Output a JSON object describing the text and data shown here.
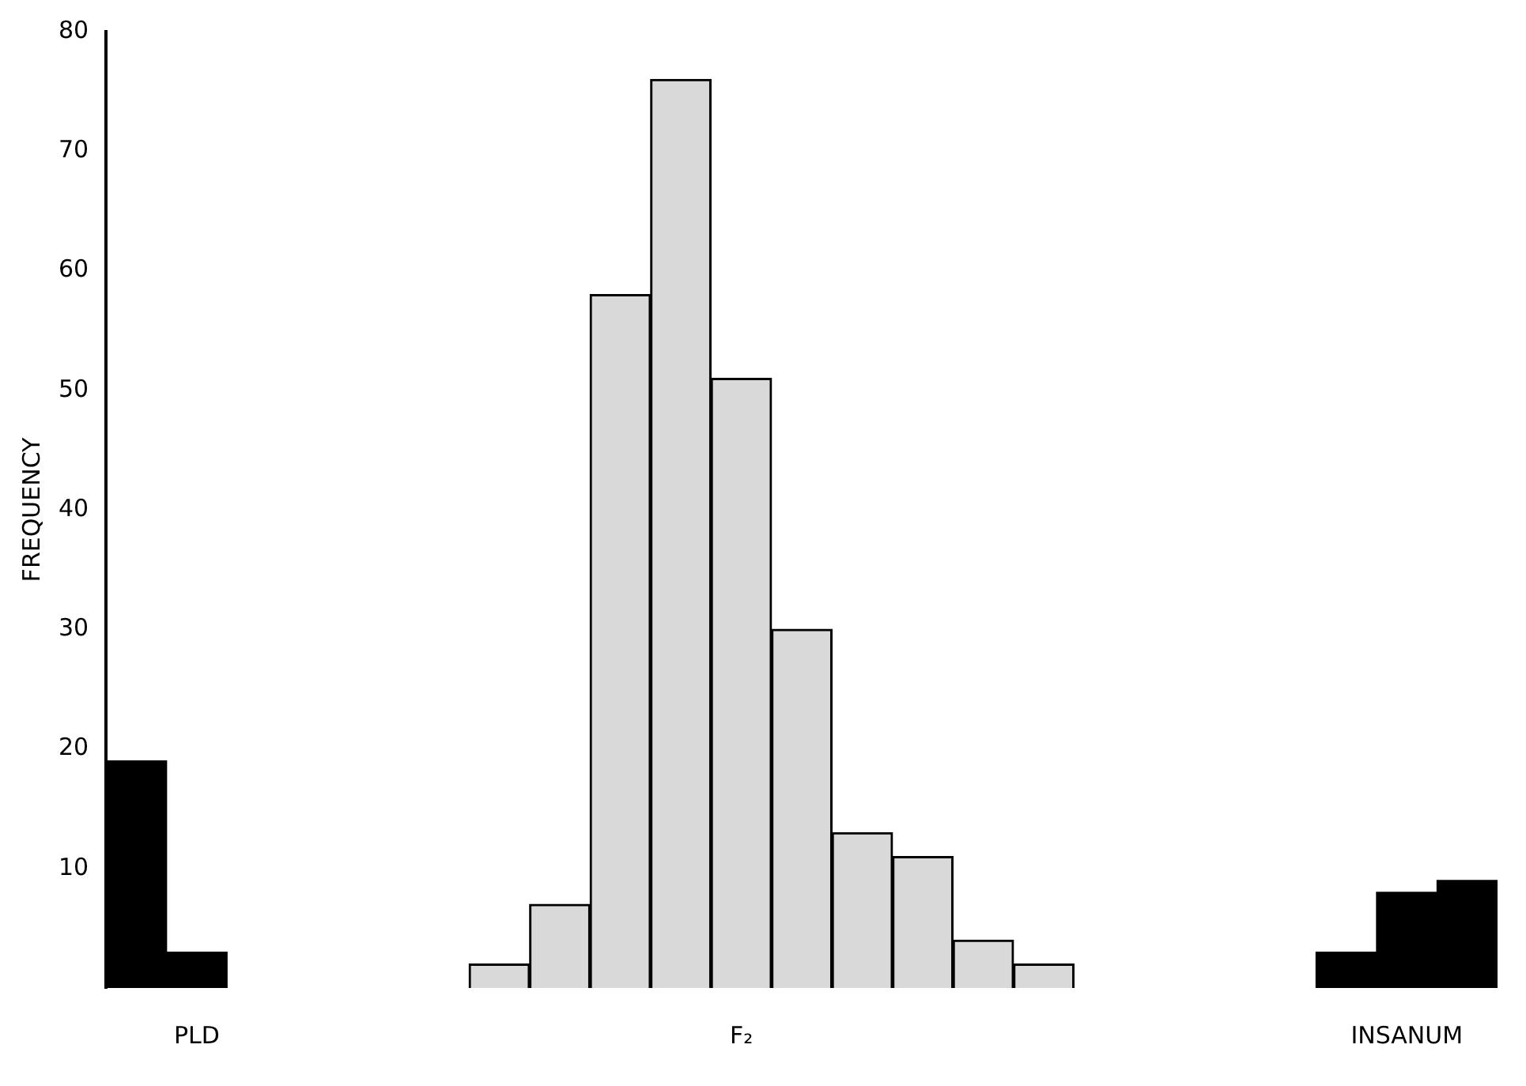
{
  "chart_data": {
    "type": "bar",
    "ylabel": "FREQUENCY",
    "categories": [
      null,
      "PLD",
      null,
      null,
      null,
      null,
      null,
      null,
      null,
      null,
      "F₂",
      null,
      null,
      null,
      null,
      null,
      null,
      null,
      null,
      null,
      null,
      "INSANUM",
      null
    ],
    "values": [
      19,
      3,
      null,
      null,
      null,
      null,
      2,
      7,
      58,
      76,
      51,
      30,
      13,
      11,
      4,
      2,
      null,
      null,
      null,
      null,
      3,
      8,
      9
    ],
    "colors": [
      "#000000",
      "#000000",
      null,
      null,
      null,
      null,
      "#d9d9d9",
      "#d9d9d9",
      "#d9d9d9",
      "#d9d9d9",
      "#d9d9d9",
      "#d9d9d9",
      "#d9d9d9",
      "#d9d9d9",
      "#d9d9d9",
      "#d9d9d9",
      null,
      null,
      null,
      null,
      "#000000",
      "#000000",
      "#000000"
    ],
    "ylim": [
      0,
      80
    ],
    "yticks": [
      10,
      20,
      30,
      40,
      50,
      60,
      70,
      80
    ],
    "grid": false,
    "legend": false
  }
}
